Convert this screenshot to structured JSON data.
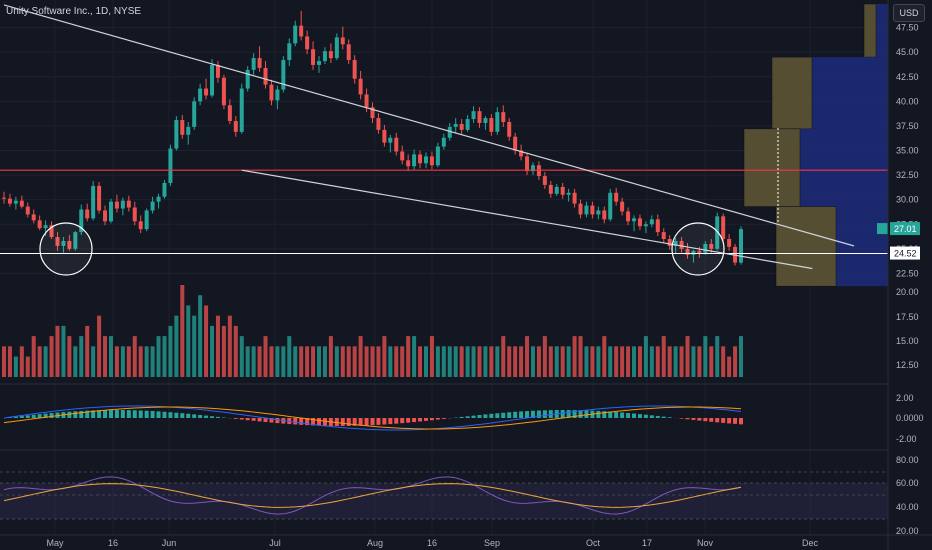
{
  "header": {
    "title": "Unity Software Inc., 1D, NYSE",
    "currency": "USD"
  },
  "colors": {
    "background": "#131722",
    "up": "#26a69a",
    "down": "#ef5350",
    "trendline": "#cfd3dc",
    "resistance": "#f23645",
    "support": "#ffffff",
    "vp_value_area": "#5d5534",
    "vp_outer": "#1d2c7a",
    "macd": "#2962ff",
    "signal": "#ff9800",
    "rsi": "#7e57c2",
    "rsi_ma": "#f0a440"
  },
  "chart_data": [
    {
      "type": "candlestick",
      "title": "",
      "y_scale": [
        20,
        49.9
      ],
      "y_ticks": [
        "47.50",
        "45.00",
        "42.50",
        "40.00",
        "37.50",
        "35.00",
        "32.50",
        "30.00",
        "27.50",
        "25.00",
        "22.50"
      ],
      "x_ticks": [
        "May",
        "16",
        "Jun",
        "Jul",
        "Aug",
        "16",
        "Sep",
        "Oct",
        "17",
        "Nov",
        "Dec"
      ],
      "last_price_label": "27.01",
      "last_price": 27.01,
      "support_label": "24.52",
      "support_level": 24.52,
      "resistance_level": 33.0,
      "trendline_upper": [
        {
          "i": 0,
          "y": 49.8
        },
        {
          "i": 143,
          "y": 25.3
        }
      ],
      "trendline_lower": [
        {
          "i": 40,
          "y": 33.0
        },
        {
          "i": 136,
          "y": 23.0
        }
      ],
      "volume_profile": [
        {
          "lo": 44.5,
          "hi": 49.9,
          "value_area": 0.03,
          "outer": 0.03
        },
        {
          "lo": 37.2,
          "hi": 44.5,
          "value_area": 0.1,
          "outer": 0.19
        },
        {
          "lo": 29.3,
          "hi": 37.2,
          "value_area": 0.14,
          "outer": 0.22
        },
        {
          "lo": 21.2,
          "hi": 29.3,
          "value_area": 0.15,
          "outer": 0.13
        }
      ],
      "series": [
        {
          "name": "OHLC",
          "values": [
            [
              30.2,
              30.8,
              29.6,
              30.1
            ],
            [
              30.1,
              30.6,
              29.3,
              29.6
            ],
            [
              29.6,
              30.3,
              29.0,
              29.9
            ],
            [
              29.9,
              30.4,
              29.1,
              29.3
            ],
            [
              29.3,
              29.7,
              28.2,
              28.5
            ],
            [
              28.5,
              29.0,
              27.6,
              27.9
            ],
            [
              27.9,
              28.4,
              26.9,
              27.1
            ],
            [
              27.1,
              27.9,
              26.3,
              27.4
            ],
            [
              27.4,
              27.8,
              26.0,
              26.2
            ],
            [
              26.2,
              26.7,
              24.8,
              25.3
            ],
            [
              25.3,
              26.2,
              24.6,
              25.8
            ],
            [
              25.8,
              26.4,
              24.8,
              25.0
            ],
            [
              25.0,
              26.8,
              24.8,
              26.7
            ],
            [
              26.7,
              29.5,
              26.4,
              29.0
            ],
            [
              29.0,
              29.6,
              27.8,
              28.1
            ],
            [
              28.1,
              31.9,
              27.9,
              31.4
            ],
            [
              31.4,
              31.8,
              28.6,
              28.9
            ],
            [
              28.9,
              29.4,
              27.4,
              27.8
            ],
            [
              27.8,
              30.1,
              27.6,
              29.8
            ],
            [
              29.8,
              30.5,
              28.7,
              29.1
            ],
            [
              29.1,
              30.2,
              28.4,
              29.9
            ],
            [
              29.9,
              30.4,
              28.8,
              29.2
            ],
            [
              29.2,
              29.8,
              27.4,
              27.8
            ],
            [
              27.8,
              28.4,
              26.6,
              27.0
            ],
            [
              27.0,
              29.1,
              26.8,
              28.9
            ],
            [
              28.9,
              30.3,
              28.6,
              29.8
            ],
            [
              29.8,
              30.6,
              29.1,
              30.3
            ],
            [
              30.3,
              32.0,
              30.1,
              31.7
            ],
            [
              31.7,
              35.6,
              31.4,
              35.2
            ],
            [
              35.2,
              38.5,
              35.0,
              38.1
            ],
            [
              38.1,
              38.6,
              36.2,
              36.6
            ],
            [
              36.6,
              37.9,
              35.6,
              37.4
            ],
            [
              37.4,
              40.4,
              37.1,
              40.0
            ],
            [
              40.0,
              41.8,
              39.6,
              41.3
            ],
            [
              41.3,
              42.3,
              40.2,
              40.6
            ],
            [
              40.6,
              44.3,
              40.4,
              43.7
            ],
            [
              43.7,
              44.1,
              41.9,
              42.4
            ],
            [
              42.4,
              42.7,
              39.2,
              39.6
            ],
            [
              39.6,
              40.2,
              37.7,
              38.0
            ],
            [
              38.0,
              38.5,
              36.4,
              36.9
            ],
            [
              36.9,
              41.8,
              36.7,
              41.3
            ],
            [
              41.3,
              43.6,
              41.0,
              43.2
            ],
            [
              43.2,
              44.9,
              42.7,
              44.4
            ],
            [
              44.4,
              45.6,
              43.0,
              43.4
            ],
            [
              43.4,
              44.1,
              41.3,
              41.7
            ],
            [
              41.7,
              42.2,
              39.6,
              40.1
            ],
            [
              40.1,
              41.6,
              39.2,
              41.2
            ],
            [
              41.2,
              44.6,
              40.9,
              44.2
            ],
            [
              44.2,
              46.4,
              43.6,
              45.9
            ],
            [
              45.9,
              48.2,
              45.6,
              47.7
            ],
            [
              47.7,
              49.2,
              46.2,
              46.6
            ],
            [
              46.6,
              47.2,
              44.8,
              45.3
            ],
            [
              45.3,
              46.1,
              43.2,
              43.7
            ],
            [
              43.7,
              44.6,
              42.9,
              44.1
            ],
            [
              44.1,
              45.5,
              43.8,
              45.1
            ],
            [
              45.1,
              45.9,
              43.9,
              44.4
            ],
            [
              44.4,
              46.9,
              44.2,
              46.5
            ],
            [
              46.5,
              47.6,
              45.3,
              45.8
            ],
            [
              45.8,
              46.3,
              43.8,
              44.2
            ],
            [
              44.2,
              44.7,
              41.8,
              42.3
            ],
            [
              42.3,
              43.1,
              40.2,
              40.7
            ],
            [
              40.7,
              41.3,
              38.9,
              39.4
            ],
            [
              39.4,
              39.9,
              37.8,
              38.3
            ],
            [
              38.3,
              38.8,
              36.7,
              37.1
            ],
            [
              37.1,
              37.6,
              35.4,
              35.8
            ],
            [
              35.8,
              36.6,
              34.8,
              36.3
            ],
            [
              36.3,
              36.8,
              34.5,
              34.9
            ],
            [
              34.9,
              35.5,
              33.6,
              34.0
            ],
            [
              34.0,
              34.6,
              32.9,
              33.4
            ],
            [
              33.4,
              35.1,
              33.0,
              34.6
            ],
            [
              34.6,
              35.0,
              33.2,
              33.7
            ],
            [
              33.7,
              34.8,
              33.2,
              34.4
            ],
            [
              34.4,
              34.9,
              33.1,
              33.5
            ],
            [
              33.5,
              35.8,
              33.3,
              35.4
            ],
            [
              35.4,
              36.7,
              35.1,
              36.3
            ],
            [
              36.3,
              37.8,
              36.0,
              37.4
            ],
            [
              37.4,
              38.3,
              36.8,
              37.7
            ],
            [
              37.7,
              38.2,
              36.6,
              37.1
            ],
            [
              37.1,
              38.6,
              36.9,
              38.2
            ],
            [
              38.2,
              39.5,
              37.8,
              39.0
            ],
            [
              39.0,
              39.4,
              37.3,
              37.8
            ],
            [
              37.8,
              38.5,
              37.1,
              38.3
            ],
            [
              38.3,
              38.7,
              36.5,
              36.9
            ],
            [
              36.9,
              39.4,
              36.6,
              38.9
            ],
            [
              38.9,
              39.6,
              37.4,
              37.9
            ],
            [
              37.9,
              38.3,
              36.0,
              36.4
            ],
            [
              36.4,
              36.8,
              34.6,
              35.0
            ],
            [
              35.0,
              35.6,
              34.0,
              34.4
            ],
            [
              34.4,
              34.8,
              32.5,
              32.9
            ],
            [
              32.9,
              33.8,
              32.5,
              33.5
            ],
            [
              33.5,
              33.9,
              32.0,
              32.4
            ],
            [
              32.4,
              32.8,
              31.1,
              31.5
            ],
            [
              31.5,
              31.9,
              30.2,
              30.6
            ],
            [
              30.6,
              31.6,
              30.4,
              31.3
            ],
            [
              31.3,
              31.7,
              30.1,
              30.5
            ],
            [
              30.5,
              31.1,
              29.8,
              30.7
            ],
            [
              30.7,
              31.1,
              29.2,
              29.6
            ],
            [
              29.6,
              30.0,
              28.1,
              28.5
            ],
            [
              28.5,
              29.8,
              28.2,
              29.4
            ],
            [
              29.4,
              29.8,
              28.1,
              28.5
            ],
            [
              28.5,
              29.3,
              28.0,
              28.9
            ],
            [
              28.9,
              29.3,
              27.6,
              28.0
            ],
            [
              28.0,
              31.1,
              27.8,
              30.7
            ],
            [
              30.7,
              31.2,
              29.4,
              29.8
            ],
            [
              29.8,
              30.2,
              28.4,
              28.8
            ],
            [
              28.8,
              29.2,
              27.4,
              27.8
            ],
            [
              27.8,
              28.4,
              26.8,
              28.1
            ],
            [
              28.1,
              28.5,
              26.9,
              27.3
            ],
            [
              27.3,
              27.8,
              26.6,
              27.5
            ],
            [
              27.5,
              28.4,
              27.2,
              28.0
            ],
            [
              28.0,
              28.5,
              26.3,
              26.7
            ],
            [
              26.7,
              27.1,
              25.6,
              26.0
            ],
            [
              26.0,
              26.4,
              24.9,
              25.3
            ],
            [
              25.3,
              26.1,
              24.5,
              25.8
            ],
            [
              25.8,
              26.2,
              24.6,
              25.0
            ],
            [
              25.0,
              25.6,
              24.0,
              24.4
            ],
            [
              24.4,
              24.9,
              23.6,
              24.8
            ],
            [
              24.8,
              25.2,
              24.1,
              24.6
            ],
            [
              24.6,
              25.8,
              24.4,
              25.5
            ],
            [
              25.5,
              26.0,
              24.6,
              25.0
            ],
            [
              25.0,
              28.7,
              24.8,
              28.3
            ],
            [
              28.3,
              28.6,
              25.6,
              26.0
            ],
            [
              26.0,
              26.5,
              24.8,
              25.2
            ],
            [
              25.2,
              25.5,
              23.3,
              23.6
            ],
            [
              23.6,
              27.3,
              23.4,
              27.01
            ]
          ]
        },
        {
          "name": "Volume",
          "values": [
            3,
            3,
            2,
            3,
            2,
            4,
            3,
            3,
            4,
            5,
            5,
            4,
            3,
            4,
            5,
            3,
            6,
            4,
            4,
            3,
            3,
            3,
            4,
            3,
            3,
            3,
            4,
            4,
            5,
            6,
            9,
            7,
            6,
            8,
            7,
            5,
            6,
            5,
            6,
            5,
            4,
            3,
            3,
            3,
            4,
            3,
            3,
            3,
            4,
            3,
            3,
            3,
            3,
            3,
            3,
            4,
            3,
            3,
            3,
            3,
            4,
            3,
            3,
            3,
            4,
            3,
            3,
            3,
            4,
            4,
            3,
            3,
            4,
            3,
            3,
            3,
            3,
            3,
            3,
            3,
            3,
            3,
            3,
            3,
            4,
            3,
            3,
            3,
            4,
            3,
            3,
            4,
            3,
            3,
            3,
            3,
            4,
            4,
            3,
            3,
            3,
            4,
            3,
            3,
            3,
            3,
            3,
            3,
            4,
            3,
            3,
            4,
            3,
            3,
            3,
            4,
            3,
            3,
            4,
            3,
            4,
            3,
            2,
            3,
            4
          ]
        },
        {
          "name": "MACD",
          "values": [
            0
          ]
        },
        {
          "name": "RSI",
          "values": [
            40,
            60
          ]
        }
      ],
      "volume_ticks": [
        "20.00",
        "17.50",
        "15.00",
        "12.50"
      ],
      "macd_ticks": [
        "2.00",
        "0.0000",
        "-2.00"
      ],
      "rsi_ticks": [
        "80.00",
        "60.00",
        "40.00",
        "20.00"
      ]
    }
  ]
}
